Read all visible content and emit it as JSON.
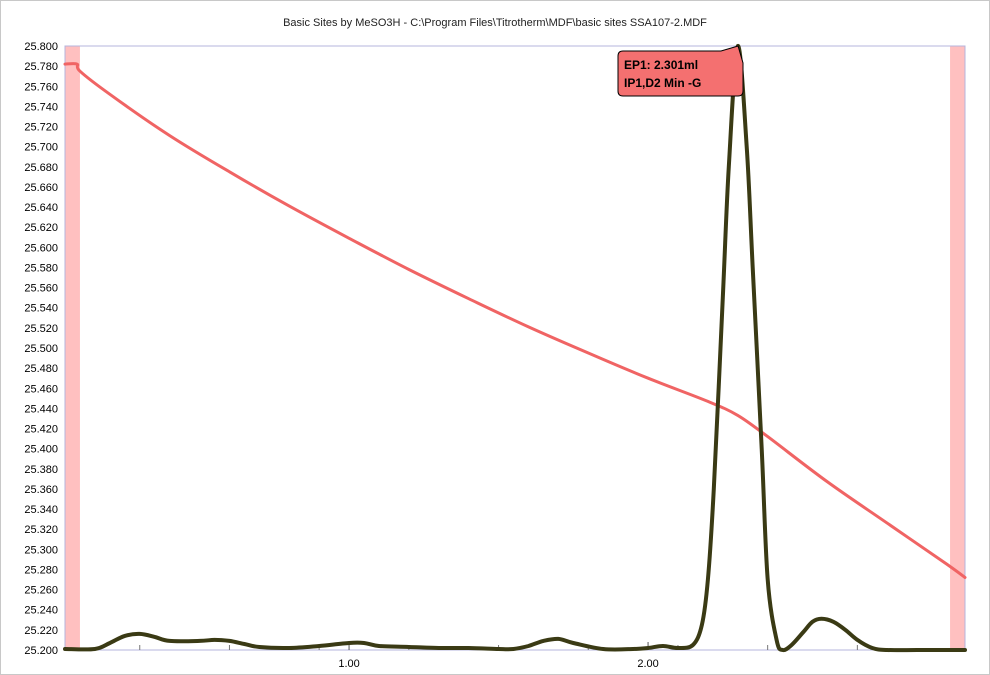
{
  "chart_data": {
    "type": "line",
    "title": "Basic Sites by MeSO3H - C:\\Program Files\\Titrotherm\\MDF\\basic sites SSA107-2.MDF",
    "xlabel": "",
    "ylabel": "",
    "xlim": [
      0.05,
      3.06
    ],
    "ylim": [
      25.2,
      25.8
    ],
    "y_ticks": [
      "25.800",
      "25.780",
      "25.760",
      "25.740",
      "25.720",
      "25.700",
      "25.680",
      "25.660",
      "25.640",
      "25.620",
      "25.600",
      "25.580",
      "25.560",
      "25.540",
      "25.520",
      "25.500",
      "25.480",
      "25.460",
      "25.440",
      "25.420",
      "25.400",
      "25.380",
      "25.360",
      "25.340",
      "25.320",
      "25.300",
      "25.280",
      "25.260",
      "25.240",
      "25.220",
      "25.200"
    ],
    "x_tick_labels": [
      {
        "value": 1.0,
        "label": "1.00"
      },
      {
        "value": 2.0,
        "label": "2.00"
      }
    ],
    "x_minor_ticks": [
      0.3,
      0.6,
      0.9,
      1.2,
      1.5,
      1.8,
      2.1,
      2.4,
      2.7
    ],
    "grid": false,
    "legend": "none",
    "excluded_regions": [
      [
        0.05,
        0.1
      ],
      [
        3.01,
        3.06
      ]
    ],
    "series": [
      {
        "color": "#f06464",
        "x": [
          0.05,
          0.09,
          0.1,
          0.2,
          0.4,
          0.6,
          0.8,
          1.0,
          1.2,
          1.4,
          1.6,
          1.8,
          2.0,
          2.2,
          2.3,
          2.4,
          2.6,
          2.8,
          3.0,
          3.06
        ],
        "y": [
          25.782,
          25.782,
          25.775,
          25.752,
          25.711,
          25.675,
          25.641,
          25.609,
          25.578,
          25.549,
          25.521,
          25.495,
          25.47,
          25.447,
          25.433,
          25.412,
          25.367,
          25.326,
          25.285,
          25.272
        ]
      },
      {
        "color": "#3a3a14",
        "x": [
          0.05,
          0.15,
          0.2,
          0.25,
          0.3,
          0.35,
          0.4,
          0.5,
          0.55,
          0.6,
          0.65,
          0.7,
          0.8,
          0.9,
          1.0,
          1.05,
          1.1,
          1.2,
          1.3,
          1.4,
          1.5,
          1.55,
          1.6,
          1.65,
          1.7,
          1.75,
          1.85,
          1.95,
          2.0,
          2.05,
          2.1,
          2.15,
          2.18,
          2.2,
          2.22,
          2.25,
          2.27,
          2.3,
          2.33,
          2.35,
          2.38,
          2.4,
          2.43,
          2.45,
          2.48,
          2.52,
          2.55,
          2.58,
          2.62,
          2.66,
          2.7,
          2.75,
          2.8,
          2.9,
          3.0,
          3.06
        ],
        "y": [
          25.201,
          25.201,
          25.207,
          25.214,
          25.216,
          25.213,
          25.209,
          25.209,
          25.21,
          25.209,
          25.206,
          25.203,
          25.202,
          25.204,
          25.207,
          25.207,
          25.204,
          25.203,
          25.202,
          25.202,
          25.201,
          25.201,
          25.204,
          25.209,
          25.211,
          25.207,
          25.201,
          25.201,
          25.202,
          25.204,
          25.202,
          25.205,
          25.225,
          25.27,
          25.36,
          25.55,
          25.68,
          25.8,
          25.7,
          25.58,
          25.4,
          25.27,
          25.21,
          25.2,
          25.205,
          25.218,
          25.228,
          25.231,
          25.228,
          25.22,
          25.21,
          25.202,
          25.2,
          25.2,
          25.2,
          25.2
        ]
      }
    ],
    "annotation": {
      "x": 2.301,
      "y": 25.8,
      "lines": [
        "EP1: 2.301ml",
        "IP1,D2 Min -G"
      ],
      "background": "#f47070"
    }
  }
}
